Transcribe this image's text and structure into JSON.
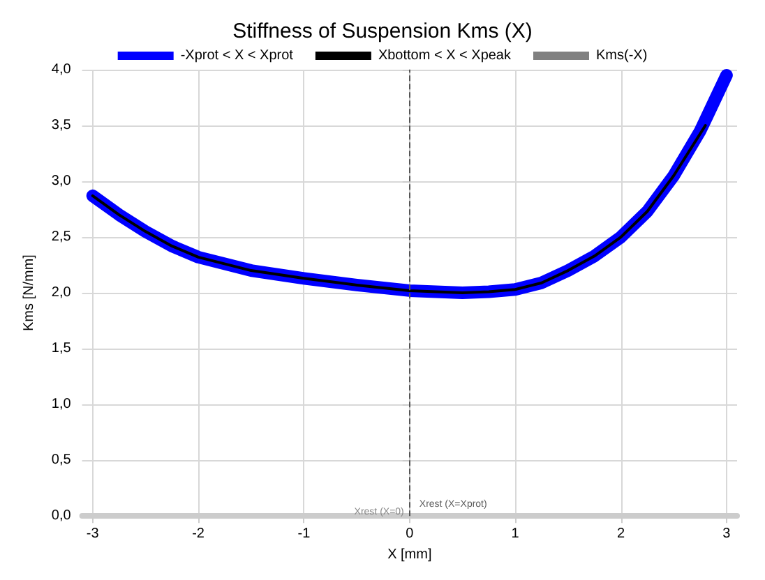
{
  "chart_data": {
    "type": "line",
    "title": "Stiffness of Suspension Kms (X)",
    "xlabel": "X [mm]",
    "ylabel": "Kms [N/mm]",
    "xlim": [
      -3.1,
      3.1
    ],
    "xticks": [
      -3,
      -2,
      -1,
      0,
      1,
      2,
      3
    ],
    "ylim": [
      0,
      4
    ],
    "yticks": [
      {
        "value": 0,
        "label": "0,0"
      },
      {
        "value": 0.5,
        "label": "0,5"
      },
      {
        "value": 1,
        "label": "1,0"
      },
      {
        "value": 1.5,
        "label": "1,5"
      },
      {
        "value": 2,
        "label": "2,0"
      },
      {
        "value": 2.5,
        "label": "2,5"
      },
      {
        "value": 3,
        "label": "3,0"
      },
      {
        "value": 3.5,
        "label": "3,5"
      },
      {
        "value": 4,
        "label": "4,0"
      }
    ],
    "grid": true,
    "legend": "top",
    "marker": "none",
    "line_style": "solid",
    "series": [
      {
        "name": "-Xprot < X < Xprot",
        "color": "#0000ff",
        "x": [
          -3,
          -2.75,
          -2.5,
          -2.25,
          -2,
          -1.5,
          -1,
          -0.5,
          0,
          0.25,
          0.5,
          0.75,
          1,
          1.25,
          1.5,
          1.75,
          2,
          2.25,
          2.5,
          2.75,
          3
        ],
        "values": [
          2.87,
          2.7,
          2.55,
          2.42,
          2.32,
          2.2,
          2.13,
          2.07,
          2.02,
          2.01,
          2.0,
          2.01,
          2.03,
          2.09,
          2.2,
          2.33,
          2.5,
          2.73,
          3.05,
          3.45,
          3.95
        ]
      },
      {
        "name": "Xbottom < X < Xpeak",
        "color": "#000000",
        "x": [
          -3,
          -2.75,
          -2.5,
          -2.25,
          -2,
          -1.5,
          -1,
          -0.5,
          0,
          0.25,
          0.5,
          0.75,
          1,
          1.25,
          1.5,
          1.75,
          2,
          2.25,
          2.5,
          2.8
        ],
        "values": [
          2.87,
          2.7,
          2.55,
          2.42,
          2.32,
          2.2,
          2.13,
          2.07,
          2.02,
          2.01,
          2.0,
          2.01,
          2.03,
          2.09,
          2.2,
          2.33,
          2.5,
          2.73,
          3.05,
          3.5
        ]
      },
      {
        "name": "Kms(-X)",
        "color": "#808080"
      }
    ],
    "ref_lines": [
      {
        "axis": "x",
        "value": 0,
        "label": "Xrest (X=0)",
        "color": "#555555",
        "line_style": "dashed"
      }
    ],
    "annotations": [
      {
        "text": "Xrest (X=Xprot)",
        "x": 0,
        "y": 0
      }
    ]
  }
}
